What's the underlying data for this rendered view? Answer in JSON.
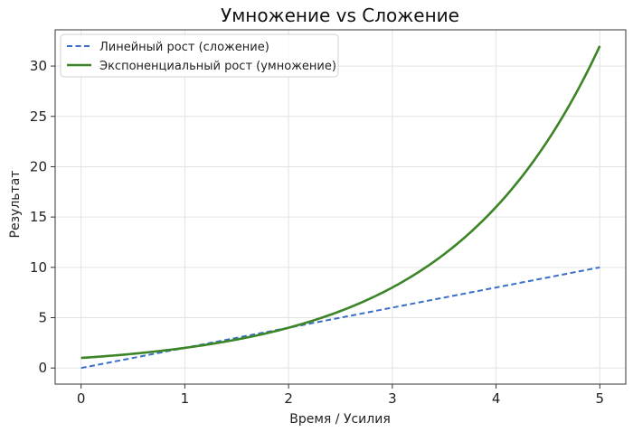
{
  "chart_data": {
    "type": "line",
    "title": "Умножение vs Сложение",
    "xlabel": "Время / Усилия",
    "ylabel": "Результат",
    "xlim": [
      -0.25,
      5.25
    ],
    "ylim": [
      -1.6,
      33.6
    ],
    "xticks": [
      0,
      1,
      2,
      3,
      4,
      5
    ],
    "yticks": [
      0,
      5,
      10,
      15,
      20,
      25,
      30
    ],
    "grid": true,
    "legend_position": "top-left",
    "series": [
      {
        "name": "Линейный рост (сложение)",
        "color": "#3a6fc9",
        "style": "dashed",
        "x": [
          0,
          5
        ],
        "y": [
          0,
          10
        ]
      },
      {
        "name": "Экспоненциальный рост (умножение)",
        "color": "#3b8526",
        "style": "solid",
        "x": [
          0,
          0.5,
          1,
          1.5,
          2,
          2.5,
          3,
          3.5,
          4,
          4.5,
          5
        ],
        "y": [
          1,
          1.41,
          2,
          2.83,
          4,
          5.66,
          8,
          11.31,
          16,
          22.63,
          32
        ]
      }
    ]
  }
}
